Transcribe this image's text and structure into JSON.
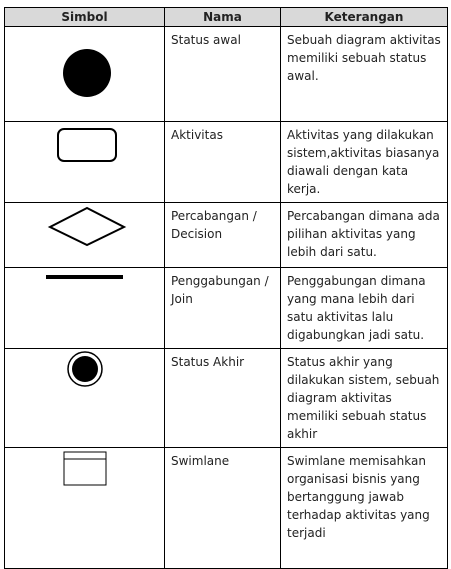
{
  "header": {
    "simbol": "Simbol",
    "nama": "Nama",
    "keterangan": "Keterangan"
  },
  "rows": [
    {
      "symbol": "filled-circle",
      "nama": "Status   awal",
      "keterangan": "Sebuah diagram aktivitas memiliki sebuah status awal."
    },
    {
      "symbol": "rounded-rect",
      "nama": "Aktivitas",
      "keterangan": "Aktivitas yang dilakukan sistem,aktivitas biasanya diawali  dengan kata kerja."
    },
    {
      "symbol": "diamond",
      "nama": "Percabangan / Decision",
      "keterangan": "Percabangan dimana ada pilihan aktivitas yang lebih dari satu."
    },
    {
      "symbol": "bar",
      "nama": "Penggabungan / Join",
      "keterangan": "Penggabungan dimana yang mana lebih dari satu aktivitas lalu digabungkan jadi satu."
    },
    {
      "symbol": "bullseye",
      "nama": "Status Akhir",
      "keterangan": "Status akhir yang  dilakukan  sistem, sebuah diagram aktivitas   memiliki sebuah status akhir"
    },
    {
      "symbol": "swimlane",
      "nama": "Swimlane",
      "keterangan": "Swimlane memisahkan organisasi  bisnis yang bertanggung jawab   terhadap aktivitas yang terjadi"
    }
  ]
}
